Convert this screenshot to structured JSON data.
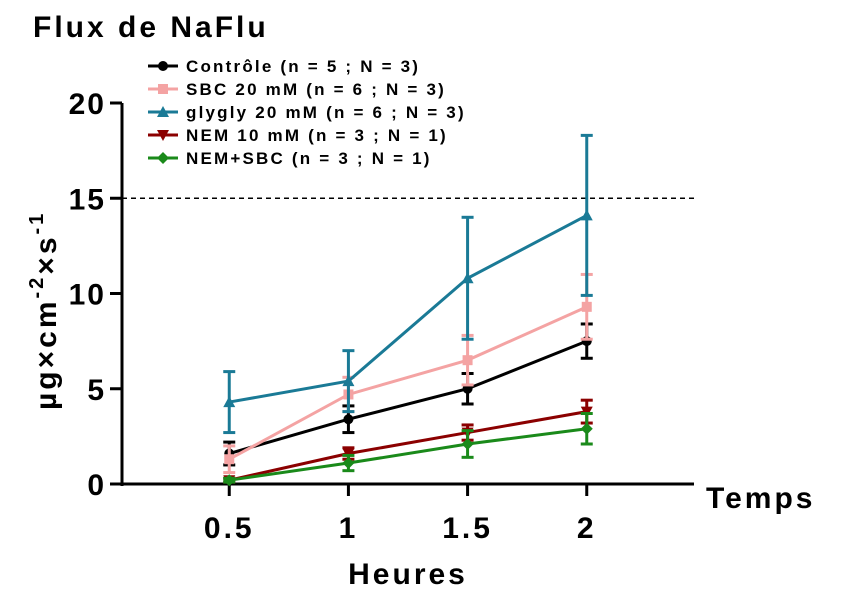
{
  "chart_data": {
    "type": "line",
    "title": "Flux de NaFlu",
    "xlabel": "Heures",
    "x_axis_side_label": "Temps",
    "ylabel_parts": [
      "µg×cm",
      "-2",
      "×s",
      "-1"
    ],
    "x": [
      0.5,
      1,
      1.5,
      2
    ],
    "x_tick_labels": [
      "0.5",
      "1",
      "1.5",
      "2"
    ],
    "xlim": [
      0.05,
      2.45
    ],
    "ylim": [
      0,
      20
    ],
    "y_ticks": [
      0,
      5,
      10,
      15,
      20
    ],
    "reference_line_y": 15,
    "legend_position": "top-left",
    "grid": false,
    "series": [
      {
        "name": "Contrôle (n = 5 ; N = 3)",
        "color": "#000000",
        "marker": "circle",
        "values": [
          1.6,
          3.4,
          5.0,
          7.5
        ],
        "errors": [
          0.6,
          0.7,
          0.8,
          0.9
        ]
      },
      {
        "name": "SBC 20 mM (n = 6 ; N = 3)",
        "color": "#f4a3a3",
        "marker": "square",
        "values": [
          1.3,
          4.7,
          6.5,
          9.3
        ],
        "errors": [
          0.7,
          0.9,
          1.3,
          1.7
        ]
      },
      {
        "name": "glygly 20 mM (n = 6 ; N = 3)",
        "color": "#1a7a96",
        "marker": "triangle-up",
        "values": [
          4.3,
          5.4,
          10.8,
          14.1
        ],
        "errors": [
          1.6,
          1.6,
          3.2,
          4.2
        ]
      },
      {
        "name": "NEM 10 mM (n = 3 ; N = 1)",
        "color": "#8b0000",
        "marker": "triangle-down",
        "values": [
          0.2,
          1.6,
          2.7,
          3.8
        ],
        "errors": [
          0.1,
          0.3,
          0.4,
          0.6
        ]
      },
      {
        "name": "NEM+SBC (n = 3 ; N = 1)",
        "color": "#1a8a1a",
        "marker": "diamond",
        "values": [
          0.2,
          1.1,
          2.1,
          2.9
        ],
        "errors": [
          0.1,
          0.4,
          0.7,
          0.8
        ]
      }
    ]
  }
}
